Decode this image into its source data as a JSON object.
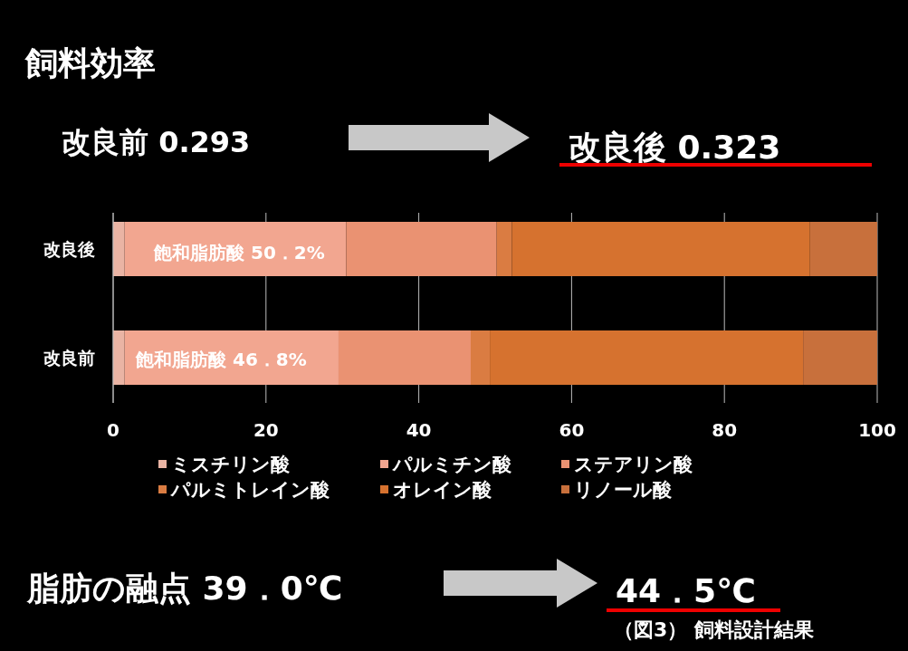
{
  "chart_data": {
    "type": "bar",
    "orientation": "horizontal",
    "stacked": true,
    "title": "飼料効率",
    "categories": [
      "改良後",
      "改良前"
    ],
    "series": [
      {
        "name": "ミスチリン酸",
        "color": "#eab4a4",
        "values": [
          1.5,
          1.5
        ]
      },
      {
        "name": "パルミチン酸",
        "color": "#f2a690",
        "values": [
          29,
          28
        ]
      },
      {
        "name": "ステアリン酸",
        "color": "#ea9272",
        "values": [
          19.7,
          17.3
        ]
      },
      {
        "name": "パルミトレイン酸",
        "color": "#da7c42",
        "values": [
          2,
          2.5
        ]
      },
      {
        "name": "オレイン酸",
        "color": "#d6722f",
        "values": [
          39,
          41
        ]
      },
      {
        "name": "リノール酸",
        "color": "#c8703c",
        "values": [
          8.8,
          9.7
        ]
      }
    ],
    "xlim": [
      0,
      100
    ],
    "xticks": [
      0,
      20,
      40,
      60,
      80,
      100
    ],
    "grid": "x",
    "legend": "bottom",
    "annotations": [
      "改良前 0.293",
      "改良後 0.323",
      "飽和脂肪酸 50．2%",
      "飽和脂肪酸 46．8%",
      "脂肪の融点 39．0℃",
      "44．5℃",
      "（図3） 飼料設計結果"
    ]
  }
}
